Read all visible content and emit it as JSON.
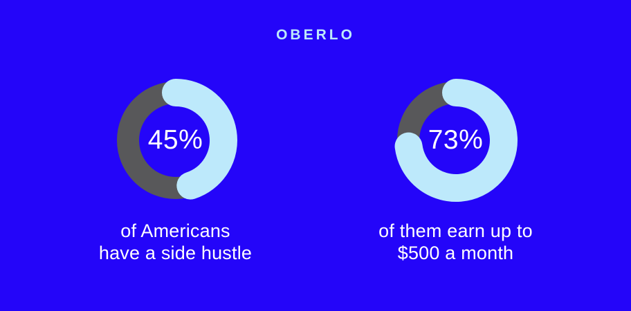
{
  "page": {
    "background_color": "#2405F9"
  },
  "header": {
    "logo": "OBERLO",
    "logo_color": "#BDE9FB"
  },
  "chart_data": {
    "type": "donut",
    "start_angle_deg": -90,
    "direction": "clockwise",
    "colors": {
      "track": "#58585A",
      "progress": "#BDE9FB",
      "value_text": "#FFFFFF"
    },
    "charts": [
      {
        "value": 45,
        "label": "45%",
        "caption_line1": "of Americans",
        "caption_line2": "have a side hustle"
      },
      {
        "value": 73,
        "label": "73%",
        "caption_line1": "of them earn up to",
        "caption_line2": "$500 a month"
      }
    ]
  }
}
